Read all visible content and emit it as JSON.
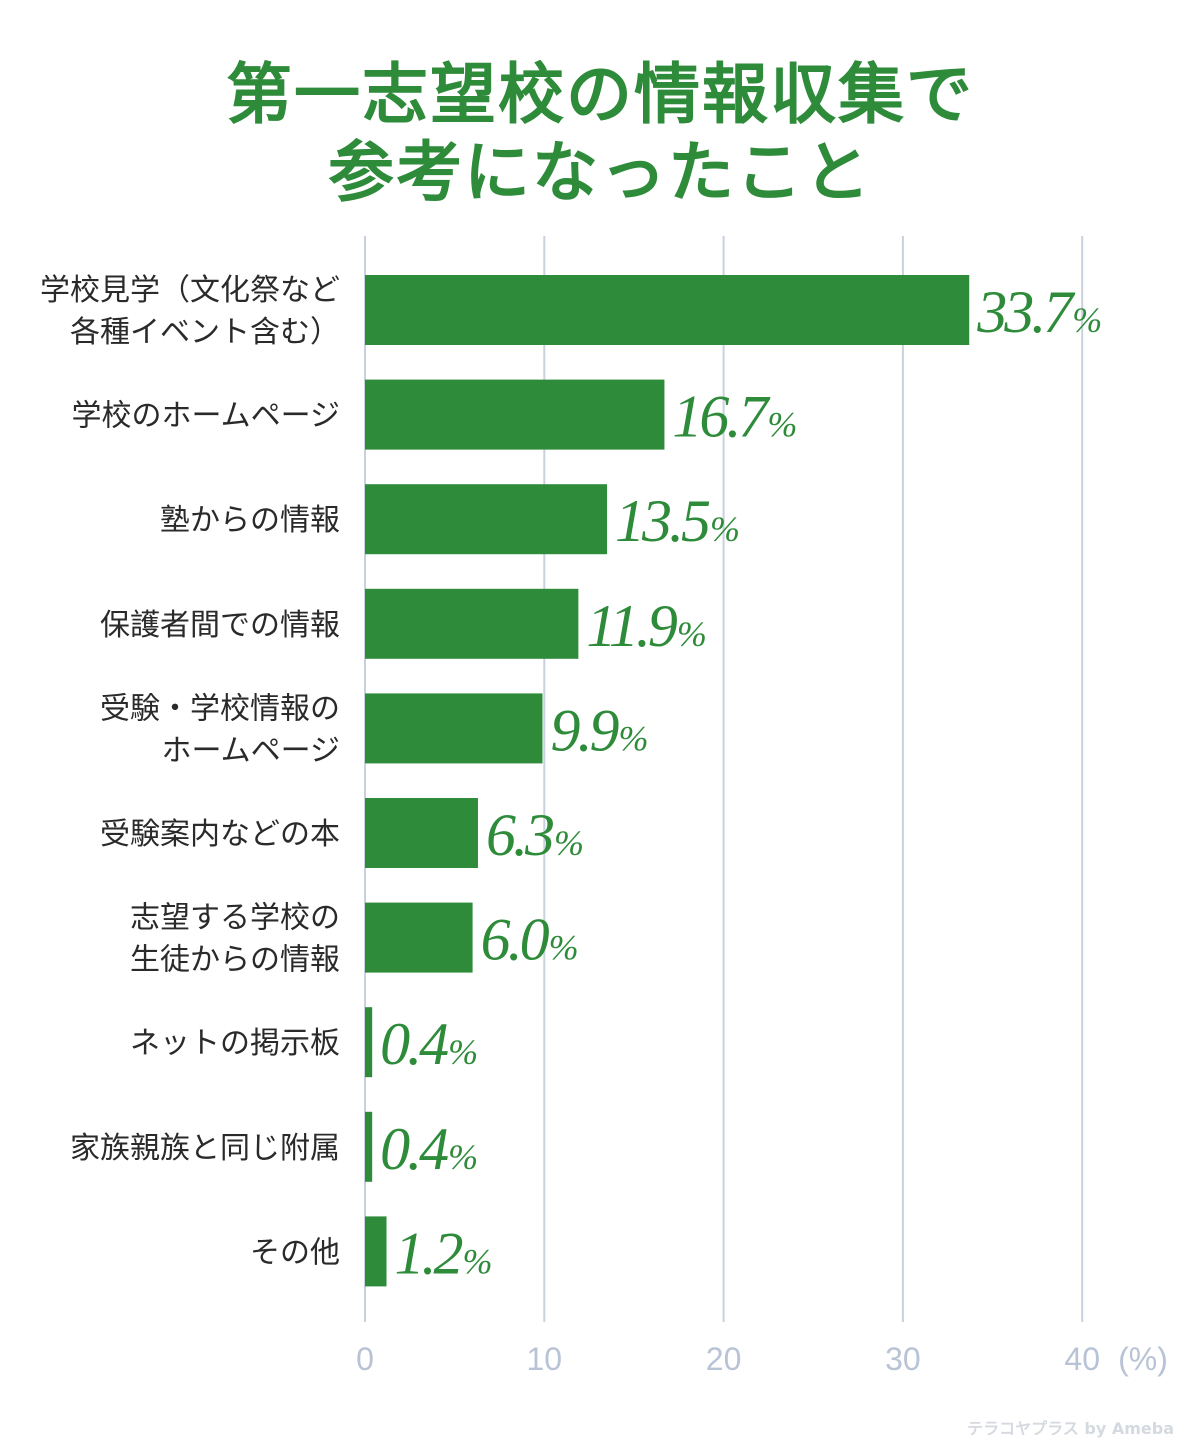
{
  "title_line1": "第一志望校の情報収集で",
  "title_line2": "参考になったこと",
  "watermark": "テラコヤプラス by Ameba",
  "colors": {
    "bar": "#2e8b3a",
    "grid": "#c9d1df",
    "tick": "#b9c3d6"
  },
  "chart_data": {
    "type": "bar",
    "orientation": "horizontal",
    "unit": "%",
    "xlim": [
      0,
      40
    ],
    "xticks": [
      0,
      10,
      20,
      30,
      40
    ],
    "xtick_unit_label": "(%)",
    "grid": true,
    "categories": [
      [
        "学校見学（文化祭など",
        "各種イベント含む）"
      ],
      [
        "学校のホームページ"
      ],
      [
        "塾からの情報"
      ],
      [
        "保護者間での情報"
      ],
      [
        "受験・学校情報の",
        "ホームページ"
      ],
      [
        "受験案内などの本"
      ],
      [
        "志望する学校の",
        "生徒からの情報"
      ],
      [
        "ネットの掲示板"
      ],
      [
        "家族親族と同じ附属"
      ],
      [
        "その他"
      ]
    ],
    "values": [
      33.7,
      16.7,
      13.5,
      11.9,
      9.9,
      6.3,
      6.0,
      0.4,
      0.4,
      1.2
    ],
    "value_labels": [
      "33.7",
      "16.7",
      "13.5",
      "11.9",
      "9.9",
      "6.3",
      "6.0",
      "0.4",
      "0.4",
      "1.2"
    ]
  }
}
